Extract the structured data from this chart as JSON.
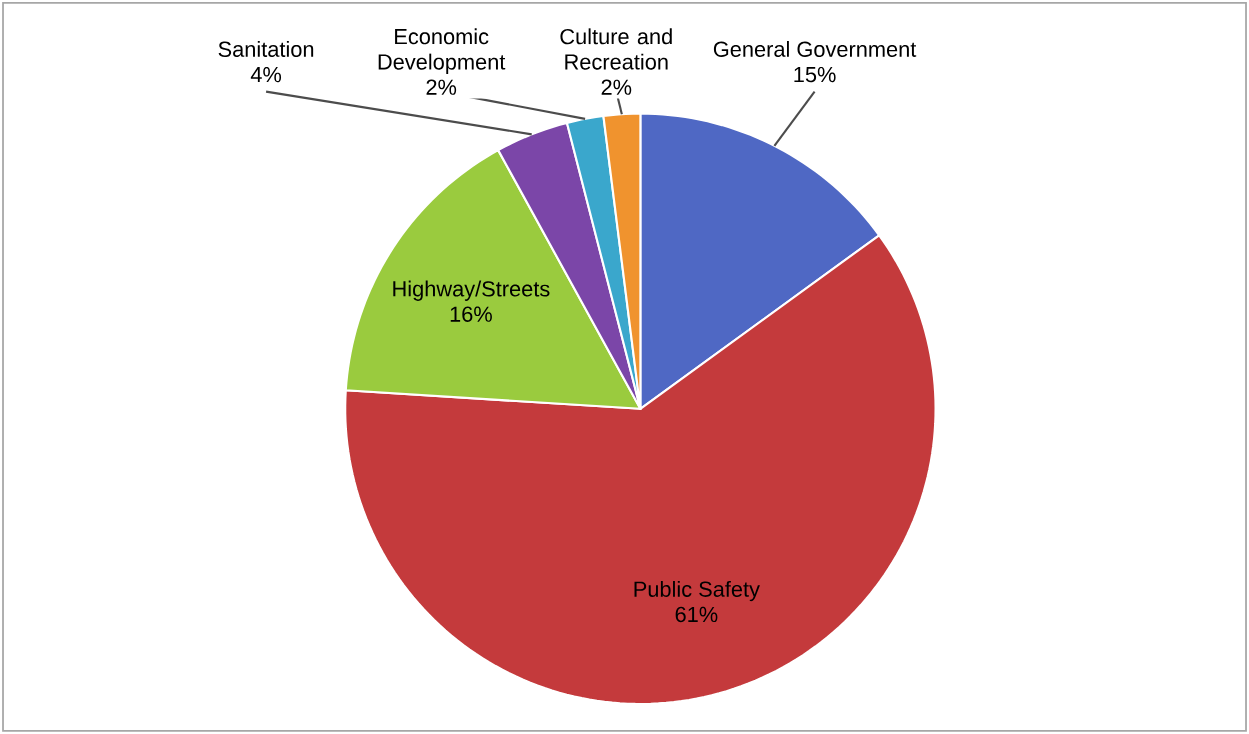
{
  "chart_data": {
    "type": "pie",
    "categories": [
      "General Government",
      "Public Safety",
      "Highway/Streets",
      "Sanitation",
      "Economic Development",
      "Culture and Recreation"
    ],
    "values": [
      15,
      61,
      16,
      4,
      2,
      2
    ],
    "value_labels": [
      "15%",
      "61%",
      "16%",
      "4%",
      "2%",
      "2%"
    ],
    "colors": [
      "#4f68c4",
      "#c43a3c",
      "#9acb3e",
      "#7b46a8",
      "#3aa7cc",
      "#f0932e"
    ]
  }
}
